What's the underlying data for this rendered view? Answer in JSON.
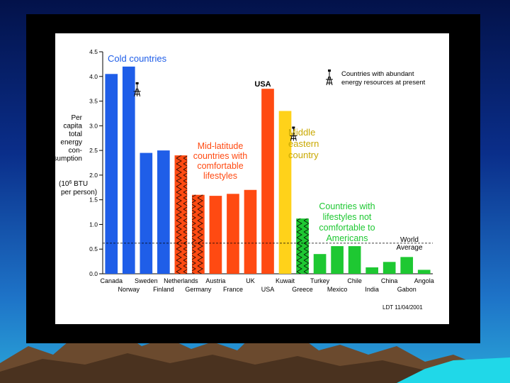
{
  "chart_data": {
    "type": "bar",
    "ylabel_lines": [
      "Per",
      "capita",
      "total",
      "energy",
      "con-",
      "sumption"
    ],
    "ylabel_unit": [
      "(10",
      "6",
      " BTU",
      "per person)"
    ],
    "ylim": [
      0,
      4.5
    ],
    "yticks": [
      "0.0",
      "0.5",
      "1.0",
      "1.5",
      "2.0",
      "2.5",
      "3.0",
      "3.5",
      "4.0",
      "4.5"
    ],
    "categories": [
      "Canada",
      "Norway",
      "Sweden",
      "Finland",
      "Netherlands",
      "Germany",
      "Austria",
      "France",
      "UK",
      "USA",
      "Kuwait",
      "Greece",
      "Turkey",
      "Mexico",
      "Chile",
      "India",
      "China",
      "Gabon",
      "Angola"
    ],
    "values": [
      4.05,
      4.2,
      2.45,
      2.5,
      2.4,
      1.6,
      1.58,
      1.62,
      1.7,
      3.75,
      3.3,
      1.12,
      0.4,
      0.56,
      0.56,
      0.13,
      0.24,
      0.34,
      0.08
    ],
    "groups": [
      "cold",
      "cold",
      "cold",
      "cold",
      "mid",
      "mid",
      "mid",
      "mid",
      "mid",
      "usa",
      "mideast",
      "dev",
      "dev",
      "dev",
      "dev",
      "dev",
      "dev",
      "dev",
      "dev"
    ],
    "textured": [
      false,
      false,
      false,
      false,
      true,
      true,
      false,
      false,
      false,
      false,
      false,
      true,
      false,
      false,
      false,
      false,
      false,
      false,
      false
    ],
    "rig_marker": [
      false,
      true,
      false,
      false,
      false,
      false,
      false,
      false,
      false,
      false,
      true,
      false,
      false,
      false,
      false,
      false,
      false,
      false,
      false
    ],
    "colors": {
      "cold": "#1f5ee8",
      "mid": "#ff4a12",
      "usa": "#ff4a12",
      "mideast": "#ffd21a",
      "dev": "#1ec832"
    },
    "world_average": 0.62,
    "annotations": {
      "cold": [
        "Cold countries"
      ],
      "mid": [
        "Mid-latitude",
        "countries with",
        "comfortable",
        "lifestyles"
      ],
      "usa": [
        "USA"
      ],
      "mideast": [
        "Middle",
        "eastern",
        "country"
      ],
      "dev": [
        "Countries with",
        "lifestyles not",
        "comfortable to",
        "Americans"
      ],
      "world_avg": [
        "World",
        "Average"
      ],
      "legend": [
        "Countries with abundant",
        "energy resources at present"
      ],
      "credit": "LDT 11/04/2001"
    }
  }
}
